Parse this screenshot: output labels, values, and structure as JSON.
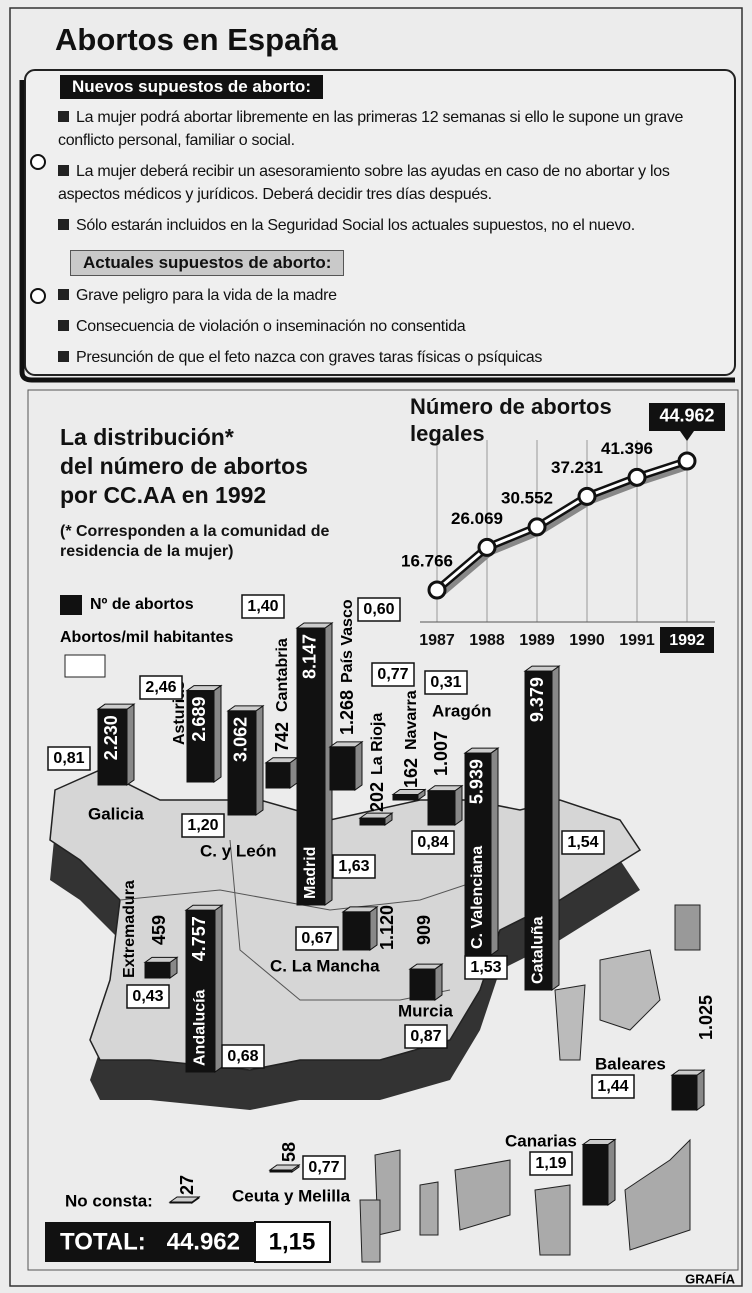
{
  "header": {
    "title": "Abortos en España"
  },
  "new_conditions": {
    "heading": "Nuevos supuestos de aborto:",
    "items": [
      "La mujer podrá abortar libremente en las primeras 12 semanas si ello le supone un grave conflicto personal, familiar o social.",
      "La mujer deberá recibir un asesoramiento sobre las ayudas en caso de no abortar y los aspectos médicos y jurídicos. Deberá decidir tres días después.",
      "Sólo estarán incluidos en la Seguridad Social los actuales supuestos, no el nuevo."
    ]
  },
  "current_conditions": {
    "heading": "Actuales supuestos de aborto:",
    "items": [
      "Grave peligro para la vida de la madre",
      "Consecuencia de violación o inseminación no consentida",
      "Presunción de que el feto nazca con graves taras físicas o psíquicas"
    ]
  },
  "chart_data": [
    {
      "type": "line",
      "title": [
        "Número de abortos",
        "legales"
      ],
      "x": [
        1987,
        1988,
        1989,
        1990,
        1991,
        1992
      ],
      "values": [
        16766,
        26069,
        30552,
        37231,
        41396,
        44962
      ],
      "value_labels": [
        "16.766",
        "26.069",
        "30.552",
        "37.231",
        "41.396",
        "44.962"
      ],
      "color": "#111",
      "grid": true
    },
    {
      "type": "map-bar",
      "title": [
        "La distribución*",
        "del número de abortos",
        "por CC.AA en 1992"
      ],
      "note": [
        "(* Corresponden a la comunidad de",
        "residencia de la mujer)"
      ],
      "categories": [
        "Galicia",
        "Asturias",
        "C. y León",
        "Cantabria",
        "Madrid",
        "País Vasco",
        "La Rioja",
        "Navarra",
        "Aragón",
        "C. Valenciana",
        "Cataluña",
        "Extremadura",
        "Andalucía",
        "C. La Mancha",
        "Murcia",
        "Baleares",
        "Canarias",
        "Ceuta y Melilla",
        "No consta:"
      ],
      "series": [
        {
          "name": "Nº de abortos",
          "color": "#111",
          "values": [
            2230,
            2689,
            3062,
            742,
            8147,
            1268,
            202,
            162,
            1007,
            5939,
            9379,
            459,
            4757,
            1120,
            909,
            1025,
            1780,
            58,
            27
          ],
          "value_labels": [
            "2.230",
            "2.689",
            "3.062",
            "742",
            "8.147",
            "1.268",
            "202",
            "162",
            "1.007",
            "5.939",
            "9.379",
            "459",
            "4.757",
            "1.120",
            "909",
            "1.025",
            null,
            "58",
            "27"
          ]
        },
        {
          "name": "Abortos/mil habitantes",
          "color": "#fff",
          "values": [
            0.81,
            2.46,
            1.2,
            1.4,
            1.63,
            0.6,
            0.77,
            0.31,
            0.84,
            1.53,
            1.54,
            0.43,
            0.68,
            0.67,
            0.87,
            1.44,
            1.19,
            0.77,
            null
          ],
          "value_labels": [
            "0,81",
            "2,46",
            "1,20",
            "1,40",
            "1,63",
            "0,60",
            "0,77",
            "0,31",
            "0,84",
            "1,53",
            "1,54",
            "0,43",
            "0,68",
            "0,67",
            "0,87",
            "1,44",
            "1,19",
            "0,77",
            null
          ]
        }
      ]
    }
  ],
  "total": {
    "label": "TOTAL:",
    "count": "44.962",
    "rate": "1,15"
  },
  "credit": "GRAFÍA"
}
